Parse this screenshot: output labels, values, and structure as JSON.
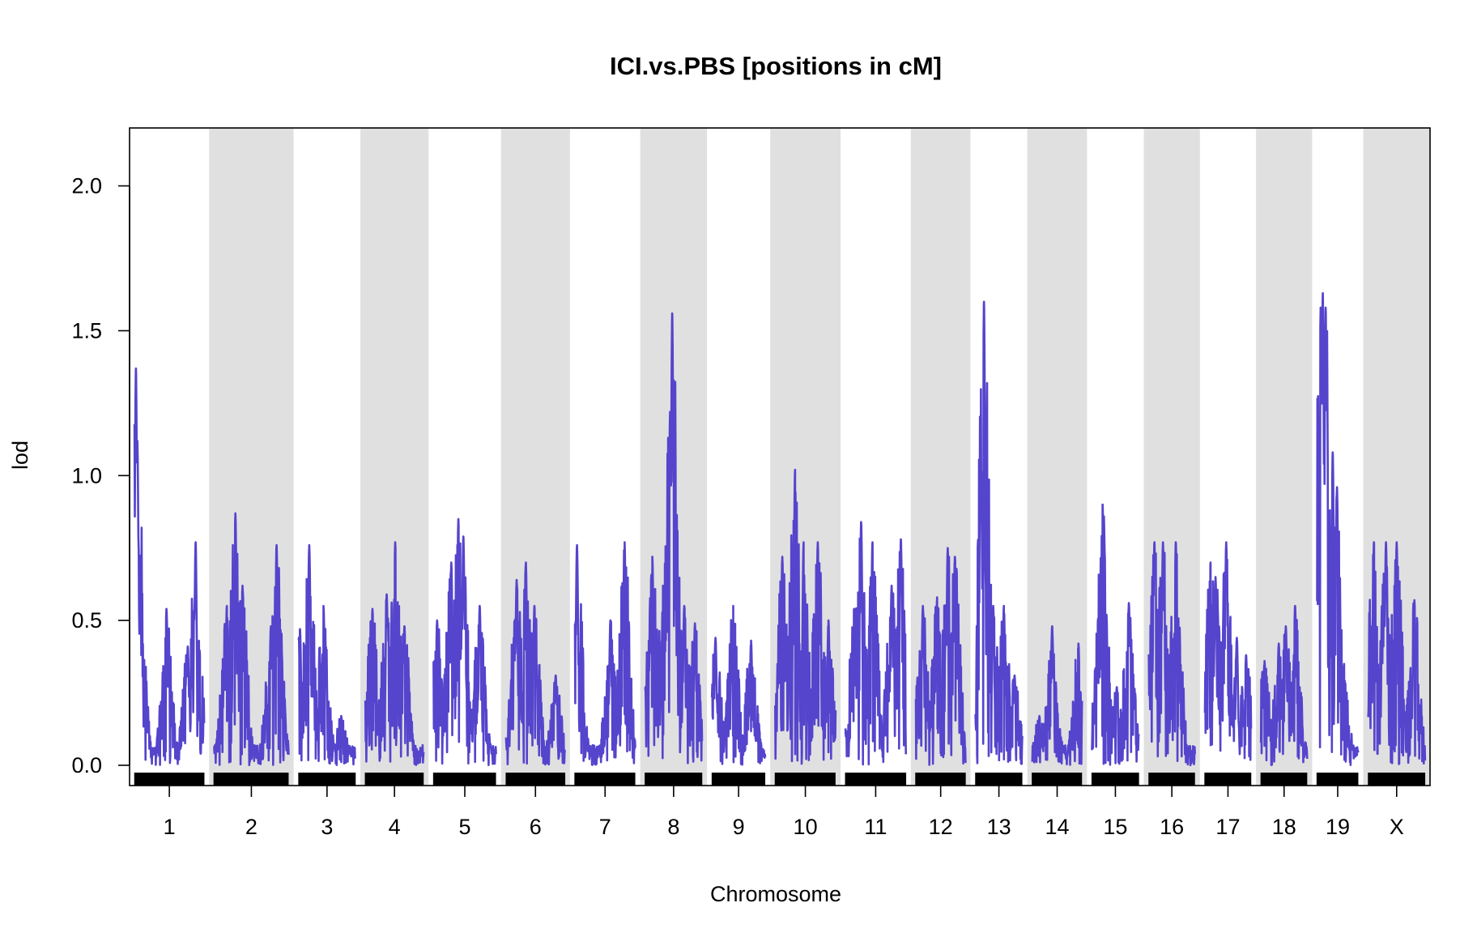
{
  "chart_data": {
    "type": "line",
    "title": "ICI.vs.PBS [positions in cM]",
    "xlabel": "Chromosome",
    "ylabel": "lod",
    "ylim": [
      -0.07,
      2.2
    ],
    "yticks": [
      0.0,
      0.5,
      1.0,
      1.5,
      2.0
    ],
    "ytick_labels": [
      "0.0",
      "0.5",
      "1.0",
      "1.5",
      "2.0"
    ],
    "line_color": "#5544cc",
    "band_color": "#e0e0e0",
    "rug_color": "#000000",
    "chromosomes": [
      {
        "name": "1",
        "length": 98,
        "peaks": [
          {
            "pos": 2,
            "lod": 1.37
          },
          {
            "pos": 4,
            "lod": 1.12
          },
          {
            "pos": 8,
            "lod": 0.6
          },
          {
            "pos": 45,
            "lod": 0.54
          },
          {
            "pos": 75,
            "lod": 0.41
          },
          {
            "pos": 86,
            "lod": 0.77
          }
        ]
      },
      {
        "name": "2",
        "length": 105,
        "peaks": [
          {
            "pos": 18,
            "lod": 0.55
          },
          {
            "pos": 30,
            "lod": 0.87
          },
          {
            "pos": 40,
            "lod": 0.62
          },
          {
            "pos": 80,
            "lod": 0.48
          },
          {
            "pos": 88,
            "lod": 0.76
          }
        ]
      },
      {
        "name": "3",
        "length": 80,
        "peaks": [
          {
            "pos": 2,
            "lod": 0.47
          },
          {
            "pos": 15,
            "lod": 0.76
          },
          {
            "pos": 35,
            "lod": 0.55
          },
          {
            "pos": 60,
            "lod": 0.17
          }
        ]
      },
      {
        "name": "4",
        "length": 82,
        "peaks": [
          {
            "pos": 10,
            "lod": 0.54
          },
          {
            "pos": 30,
            "lod": 0.59
          },
          {
            "pos": 42,
            "lod": 0.77
          },
          {
            "pos": 55,
            "lod": 0.48
          }
        ]
      },
      {
        "name": "5",
        "length": 88,
        "peaks": [
          {
            "pos": 5,
            "lod": 0.5
          },
          {
            "pos": 25,
            "lod": 0.7
          },
          {
            "pos": 35,
            "lod": 0.85
          },
          {
            "pos": 42,
            "lod": 0.79
          },
          {
            "pos": 65,
            "lod": 0.55
          }
        ]
      },
      {
        "name": "6",
        "length": 83,
        "peaks": [
          {
            "pos": 15,
            "lod": 0.64
          },
          {
            "pos": 28,
            "lod": 0.7
          },
          {
            "pos": 40,
            "lod": 0.55
          },
          {
            "pos": 70,
            "lod": 0.31
          }
        ]
      },
      {
        "name": "7",
        "length": 85,
        "peaks": [
          {
            "pos": 3,
            "lod": 0.76
          },
          {
            "pos": 50,
            "lod": 0.5
          },
          {
            "pos": 70,
            "lod": 0.77
          }
        ]
      },
      {
        "name": "8",
        "length": 80,
        "peaks": [
          {
            "pos": 10,
            "lod": 0.72
          },
          {
            "pos": 25,
            "lod": 0.62
          },
          {
            "pos": 38,
            "lod": 1.56
          },
          {
            "pos": 35,
            "lod": 1.22
          },
          {
            "pos": 55,
            "lod": 0.55
          },
          {
            "pos": 70,
            "lod": 0.49
          }
        ]
      },
      {
        "name": "9",
        "length": 75,
        "peaks": [
          {
            "pos": 5,
            "lod": 0.44
          },
          {
            "pos": 30,
            "lod": 0.55
          },
          {
            "pos": 55,
            "lod": 0.43
          }
        ]
      },
      {
        "name": "10",
        "length": 85,
        "peaks": [
          {
            "pos": 10,
            "lod": 0.72
          },
          {
            "pos": 28,
            "lod": 1.02
          },
          {
            "pos": 40,
            "lod": 0.77
          },
          {
            "pos": 60,
            "lod": 0.77
          },
          {
            "pos": 75,
            "lod": 0.5
          }
        ]
      },
      {
        "name": "11",
        "length": 85,
        "peaks": [
          {
            "pos": 12,
            "lod": 0.54
          },
          {
            "pos": 22,
            "lod": 0.84
          },
          {
            "pos": 38,
            "lod": 0.77
          },
          {
            "pos": 65,
            "lod": 0.62
          },
          {
            "pos": 78,
            "lod": 0.78
          }
        ]
      },
      {
        "name": "12",
        "length": 70,
        "peaks": [
          {
            "pos": 10,
            "lod": 0.55
          },
          {
            "pos": 30,
            "lod": 0.58
          },
          {
            "pos": 45,
            "lod": 0.75
          },
          {
            "pos": 55,
            "lod": 0.72
          }
        ]
      },
      {
        "name": "13",
        "length": 66,
        "peaks": [
          {
            "pos": 8,
            "lod": 0.98
          },
          {
            "pos": 12,
            "lod": 1.6
          },
          {
            "pos": 25,
            "lod": 0.55
          },
          {
            "pos": 40,
            "lod": 0.55
          },
          {
            "pos": 55,
            "lod": 0.31
          }
        ]
      },
      {
        "name": "14",
        "length": 70,
        "peaks": [
          {
            "pos": 10,
            "lod": 0.17
          },
          {
            "pos": 28,
            "lod": 0.48
          },
          {
            "pos": 65,
            "lod": 0.42
          }
        ]
      },
      {
        "name": "15",
        "length": 66,
        "peaks": [
          {
            "pos": 8,
            "lod": 0.36
          },
          {
            "pos": 15,
            "lod": 0.9
          },
          {
            "pos": 35,
            "lod": 0.27
          },
          {
            "pos": 52,
            "lod": 0.56
          }
        ]
      },
      {
        "name": "16",
        "length": 65,
        "peaks": [
          {
            "pos": 8,
            "lod": 0.77
          },
          {
            "pos": 20,
            "lod": 0.77
          },
          {
            "pos": 38,
            "lod": 0.77
          },
          {
            "pos": 48,
            "lod": 0.12
          }
        ]
      },
      {
        "name": "17",
        "length": 65,
        "peaks": [
          {
            "pos": 8,
            "lod": 0.7
          },
          {
            "pos": 15,
            "lod": 0.65
          },
          {
            "pos": 30,
            "lod": 0.77
          },
          {
            "pos": 45,
            "lod": 0.44
          },
          {
            "pos": 58,
            "lod": 0.38
          }
        ]
      },
      {
        "name": "18",
        "length": 65,
        "peaks": [
          {
            "pos": 5,
            "lod": 0.36
          },
          {
            "pos": 25,
            "lod": 0.42
          },
          {
            "pos": 35,
            "lod": 0.48
          },
          {
            "pos": 48,
            "lod": 0.55
          }
        ]
      },
      {
        "name": "19",
        "length": 58,
        "peaks": [
          {
            "pos": 5,
            "lod": 1.58
          },
          {
            "pos": 8,
            "lod": 1.63
          },
          {
            "pos": 12,
            "lod": 1.58
          },
          {
            "pos": 22,
            "lod": 1.08
          },
          {
            "pos": 28,
            "lod": 0.96
          },
          {
            "pos": 38,
            "lod": 0.35
          }
        ]
      },
      {
        "name": "X",
        "length": 80,
        "peaks": [
          {
            "pos": 8,
            "lod": 0.77
          },
          {
            "pos": 25,
            "lod": 0.77
          },
          {
            "pos": 40,
            "lod": 0.77
          },
          {
            "pos": 65,
            "lod": 0.57
          }
        ]
      }
    ]
  }
}
